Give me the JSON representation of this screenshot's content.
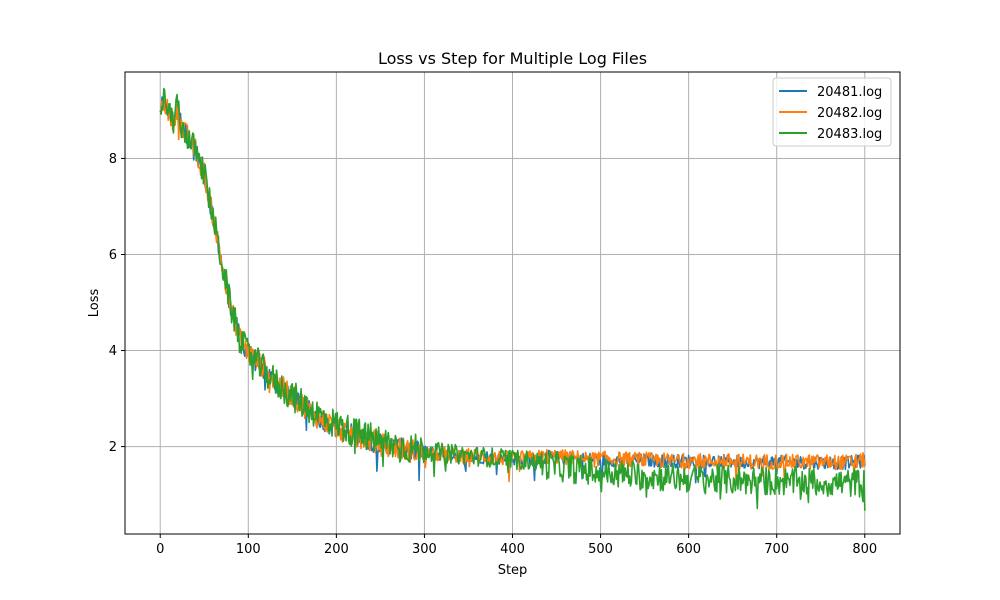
{
  "chart_data": {
    "type": "line",
    "title": "Loss vs Step for Multiple Log Files",
    "xlabel": "Step",
    "ylabel": "Loss",
    "xlim": [
      -40,
      840
    ],
    "ylim": [
      0.18,
      9.8
    ],
    "xticks": [
      0,
      100,
      200,
      300,
      400,
      500,
      600,
      700,
      800
    ],
    "yticks": [
      2,
      4,
      6,
      8
    ],
    "grid": true,
    "legend_position": "top-right",
    "series": [
      {
        "name": "20481.log",
        "color": "#1f77b4",
        "x": [
          0,
          5,
          10,
          15,
          20,
          25,
          30,
          35,
          40,
          45,
          50,
          55,
          60,
          65,
          70,
          75,
          80,
          85,
          90,
          95,
          100,
          110,
          120,
          130,
          140,
          150,
          160,
          170,
          180,
          190,
          200,
          210,
          220,
          230,
          240,
          250,
          260,
          270,
          280,
          290,
          300,
          320,
          340,
          360,
          380,
          400,
          420,
          440,
          460,
          480,
          500,
          520,
          540,
          560,
          580,
          600,
          620,
          640,
          660,
          680,
          700,
          720,
          740,
          760,
          780,
          800
        ],
        "y": [
          9.0,
          9.2,
          8.9,
          8.8,
          9.1,
          8.6,
          8.5,
          8.3,
          8.2,
          7.9,
          7.7,
          7.2,
          6.8,
          6.3,
          5.8,
          5.4,
          4.9,
          4.6,
          4.3,
          4.1,
          3.95,
          3.75,
          3.55,
          3.35,
          3.2,
          3.05,
          2.9,
          2.75,
          2.6,
          2.5,
          2.4,
          2.3,
          2.25,
          2.2,
          2.12,
          2.05,
          2.0,
          1.98,
          1.93,
          1.9,
          1.88,
          1.84,
          1.82,
          1.79,
          1.77,
          1.75,
          1.74,
          1.78,
          1.76,
          1.74,
          1.73,
          1.72,
          1.71,
          1.71,
          1.7,
          1.7,
          1.69,
          1.69,
          1.68,
          1.68,
          1.68,
          1.67,
          1.67,
          1.67,
          1.66,
          1.7
        ]
      },
      {
        "name": "20482.log",
        "color": "#ff7f0e",
        "x": [
          0,
          5,
          10,
          15,
          20,
          25,
          30,
          35,
          40,
          45,
          50,
          55,
          60,
          65,
          70,
          75,
          80,
          85,
          90,
          95,
          100,
          110,
          120,
          130,
          140,
          150,
          160,
          170,
          180,
          190,
          200,
          210,
          220,
          230,
          240,
          250,
          260,
          270,
          280,
          290,
          300,
          320,
          340,
          360,
          380,
          400,
          420,
          440,
          460,
          480,
          500,
          520,
          540,
          560,
          580,
          600,
          620,
          640,
          660,
          680,
          700,
          720,
          740,
          760,
          780,
          800
        ],
        "y": [
          9.0,
          9.2,
          8.9,
          8.8,
          9.1,
          8.6,
          8.5,
          8.3,
          8.2,
          7.9,
          7.7,
          7.2,
          6.8,
          6.3,
          5.8,
          5.4,
          4.9,
          4.6,
          4.3,
          4.1,
          3.95,
          3.78,
          3.6,
          3.38,
          3.2,
          3.05,
          2.9,
          2.75,
          2.6,
          2.5,
          2.4,
          2.3,
          2.25,
          2.2,
          2.12,
          2.05,
          2.0,
          1.98,
          1.93,
          1.9,
          1.88,
          1.84,
          1.82,
          1.79,
          1.77,
          1.75,
          1.76,
          1.8,
          1.78,
          1.76,
          1.75,
          1.74,
          1.73,
          1.72,
          1.71,
          1.71,
          1.7,
          1.7,
          1.69,
          1.69,
          1.69,
          1.68,
          1.68,
          1.68,
          1.67,
          1.72
        ]
      },
      {
        "name": "20483.log",
        "color": "#2ca02c",
        "x": [
          0,
          5,
          10,
          15,
          20,
          25,
          30,
          35,
          40,
          45,
          50,
          55,
          60,
          65,
          70,
          75,
          80,
          85,
          90,
          95,
          100,
          110,
          120,
          130,
          140,
          150,
          160,
          170,
          180,
          190,
          200,
          210,
          220,
          230,
          240,
          250,
          260,
          270,
          280,
          290,
          300,
          320,
          340,
          360,
          380,
          400,
          420,
          440,
          460,
          480,
          500,
          520,
          540,
          560,
          580,
          600,
          620,
          640,
          660,
          680,
          700,
          720,
          740,
          760,
          780,
          800
        ],
        "y": [
          9.0,
          9.3,
          8.9,
          8.8,
          9.1,
          8.6,
          8.5,
          8.3,
          8.2,
          7.9,
          7.7,
          7.2,
          6.8,
          6.3,
          5.8,
          5.4,
          4.9,
          4.6,
          4.3,
          4.1,
          3.95,
          3.75,
          3.55,
          3.35,
          3.2,
          3.05,
          2.92,
          2.78,
          2.66,
          2.56,
          2.46,
          2.38,
          2.3,
          2.24,
          2.18,
          2.12,
          2.06,
          2.02,
          1.98,
          1.95,
          1.92,
          1.87,
          1.83,
          1.8,
          1.77,
          1.74,
          1.71,
          1.62,
          1.56,
          1.51,
          1.47,
          1.43,
          1.4,
          1.38,
          1.36,
          1.34,
          1.32,
          1.31,
          1.3,
          1.29,
          1.28,
          1.27,
          1.26,
          1.25,
          1.24,
          1.26
        ]
      }
    ]
  }
}
